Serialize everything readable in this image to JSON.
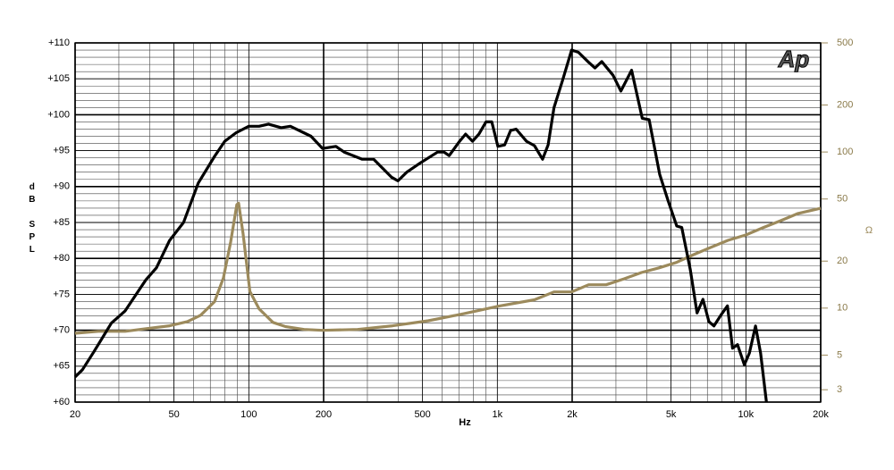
{
  "chart_data": {
    "type": "line",
    "logo": "Ap",
    "x_label": "Hz",
    "y_label": "dB SPL",
    "y2_label": "Ω",
    "x_log": true,
    "y2_log": true,
    "grid": true,
    "minor_grid": true,
    "xlim": [
      20,
      20000
    ],
    "xticks": [
      20,
      50,
      100,
      200,
      500,
      {
        "value": 1000,
        "label": "1k"
      },
      {
        "value": 2000,
        "label": "2k"
      },
      {
        "value": 5000,
        "label": "5k"
      },
      {
        "value": 10000,
        "label": "10k"
      },
      {
        "value": 20000,
        "label": "20k"
      }
    ],
    "ylim": [
      60,
      110
    ],
    "yticks": [
      {
        "value": 60,
        "label": "+60"
      },
      {
        "value": 65,
        "label": "+65"
      },
      {
        "value": 70,
        "label": "+70"
      },
      {
        "value": 75,
        "label": "+75"
      },
      {
        "value": 80,
        "label": "+80"
      },
      {
        "value": 85,
        "label": "+85"
      },
      {
        "value": 90,
        "label": "+90"
      },
      {
        "value": 95,
        "label": "+95"
      },
      {
        "value": 100,
        "label": "+100"
      },
      {
        "value": 105,
        "label": "+105"
      },
      {
        "value": 110,
        "label": "+110"
      }
    ],
    "y2lim": [
      2.5,
      500
    ],
    "y2ticks": [
      3,
      5,
      10,
      20,
      50,
      100,
      200,
      500
    ],
    "series": [
      {
        "color": "#000000",
        "x": [
          20,
          21.4,
          23.8,
          28,
          31.8,
          36,
          38.5,
          42.5,
          48,
          54.6,
          62.6,
          72.8,
          80,
          89,
          100,
          110,
          120,
          135,
          147,
          178,
          198,
          224,
          242,
          286,
          318,
          375,
          398,
          432,
          490,
          575,
          610,
          640,
          705,
          745,
          795,
          843,
          900,
          950,
          1005,
          1070,
          1130,
          1190,
          1310,
          1410,
          1520,
          1600,
          1690,
          1830,
          1990,
          2120,
          2330,
          2470,
          2630,
          2920,
          3140,
          3470,
          3830,
          4080,
          4500,
          4870,
          5270,
          5520,
          5980,
          6360,
          6720,
          7100,
          7440,
          7970,
          8430,
          8840,
          9260,
          9860,
          10330,
          10930,
          11460,
          12100
        ],
        "values": [
          63.5,
          64.5,
          67,
          71,
          72.7,
          75.5,
          77,
          78.7,
          82.5,
          85,
          90.5,
          94.2,
          96.3,
          97.5,
          98.4,
          98.4,
          98.7,
          98.2,
          98.4,
          97,
          95.3,
          95.6,
          94.8,
          93.8,
          93.8,
          91.3,
          90.8,
          92,
          93.3,
          94.8,
          94.8,
          94.3,
          96.3,
          97.3,
          96.3,
          97.3,
          99,
          99,
          95.6,
          95.8,
          97.8,
          98,
          96.3,
          95.7,
          93.8,
          95.8,
          101,
          104.8,
          109,
          108.7,
          107.3,
          106.5,
          107.4,
          105.5,
          103.3,
          106.2,
          99.5,
          99.3,
          91.7,
          88,
          84.5,
          84.3,
          78.4,
          72.4,
          74.3,
          71.2,
          70.6,
          72.2,
          73.4,
          67.5,
          68,
          65.2,
          66.8,
          70.6,
          66.8,
          60
        ]
      },
      {
        "color": "#9c8a5c",
        "axis": "y2",
        "x": [
          20,
          24.8,
          31.8,
          39,
          48,
          56.6,
          64,
          72.8,
          79,
          84.5,
          89.5,
          91,
          94.8,
          101,
          110,
          125,
          141,
          167,
          198,
          274,
          379,
          527,
          733,
          1015,
          1410,
          1690,
          1990,
          2330,
          2740,
          3230,
          3800,
          4470,
          5240,
          6160,
          7230,
          8490,
          9980,
          11700,
          13800,
          16200,
          20000
        ],
        "values": [
          6.9,
          7.1,
          7.1,
          7.4,
          7.7,
          8.2,
          9.0,
          11.0,
          15.6,
          26.5,
          46,
          47,
          30,
          12.8,
          9.9,
          8.1,
          7.6,
          7.3,
          7.2,
          7.3,
          7.7,
          8.3,
          9.2,
          10.3,
          11.3,
          12.7,
          12.7,
          14.1,
          14.1,
          15.4,
          16.9,
          18.1,
          19.6,
          22.0,
          24.5,
          27.2,
          29.4,
          32.7,
          36.3,
          40.4,
          43.6
        ]
      }
    ]
  }
}
